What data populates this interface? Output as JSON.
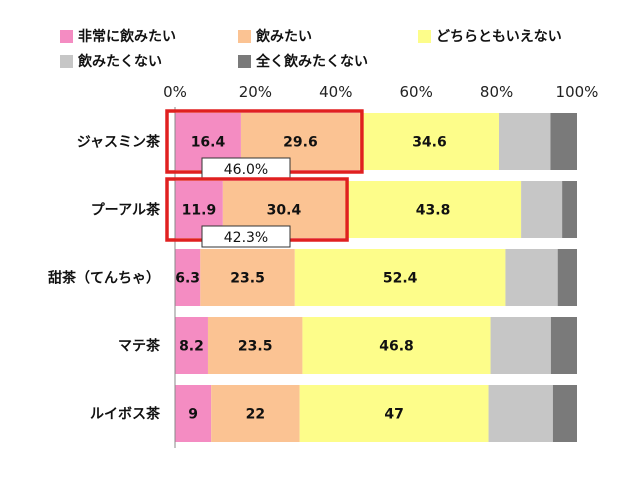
{
  "chart_data": {
    "type": "bar",
    "orientation": "horizontal",
    "stacked": true,
    "title": "",
    "xlabel": "",
    "ylabel": "",
    "xlim": [
      0,
      100
    ],
    "x_tick_labels": [
      "0%",
      "20%",
      "40%",
      "60%",
      "80%",
      "100%"
    ],
    "categories": [
      "ジャスミン茶",
      "プーアル茶",
      "甜茶（てんちゃ）",
      "マテ茶",
      "ルイボス茶"
    ],
    "series": [
      {
        "name": "非常に飲みたい",
        "color": "#f48cc2",
        "values": [
          16.4,
          11.9,
          6.3,
          8.2,
          9
        ],
        "labels": [
          "16.4",
          "11.9",
          "6.3",
          "8.2",
          "9"
        ]
      },
      {
        "name": "飲みたい",
        "color": "#fbc393",
        "values": [
          29.6,
          30.4,
          23.5,
          23.5,
          22
        ],
        "labels": [
          "29.6",
          "30.4",
          "23.5",
          "23.5",
          "22"
        ]
      },
      {
        "name": "どちらともいえない",
        "color": "#fdfd8a",
        "values": [
          34.6,
          43.8,
          52.4,
          46.8,
          47
        ],
        "labels": [
          "34.6",
          "43.8",
          "52.4",
          "46.8",
          "47"
        ]
      },
      {
        "name": "飲みたくない",
        "color": "#c6c6c6",
        "values": [
          12.8,
          10.2,
          13.0,
          15.0,
          16.0
        ],
        "labels": [
          "",
          "",
          "",
          "",
          ""
        ]
      },
      {
        "name": "全く飲みたくない",
        "color": "#7a7a7a",
        "values": [
          6.6,
          3.7,
          4.8,
          6.5,
          6.0
        ],
        "labels": [
          "",
          "",
          "",
          "",
          ""
        ]
      }
    ],
    "annotations": [
      {
        "category_index": 0,
        "text": "46.0%",
        "highlight_series": [
          0,
          1
        ],
        "highlight_color": "#e02020"
      },
      {
        "category_index": 1,
        "text": "42.3%",
        "highlight_series": [
          0,
          1
        ],
        "highlight_color": "#e02020"
      }
    ],
    "legend_position": "top",
    "grid": false
  }
}
